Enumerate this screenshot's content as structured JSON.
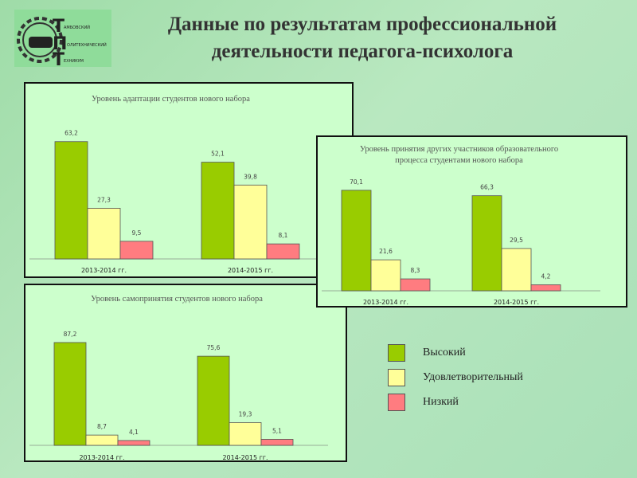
{
  "title": [
    "Данные по результатам профессиональной",
    "деятельности педагога-психолога"
  ],
  "logo": {
    "letters": [
      "Т",
      "П",
      "Т"
    ],
    "words": [
      "АМБОВСКИЙ",
      "ОЛИТЕХНИЧЕСКИЙ",
      "ЕХНИКУМ"
    ]
  },
  "colors": {
    "high": "#99cc00",
    "mid": "#ffff99",
    "low": "#ff7c80"
  },
  "legend": [
    {
      "label": "Высокий",
      "color": "#99cc00"
    },
    {
      "label": "Удовлетворительный",
      "color": "#ffff99"
    },
    {
      "label": "Низкий",
      "color": "#ff7c80"
    }
  ],
  "chart_data": [
    {
      "type": "bar",
      "title": [
        "Уровень адаптации студентов нового набора"
      ],
      "categories": [
        "2013-2014 гг.",
        "2014-2015 гг."
      ],
      "series": [
        {
          "name": "Высокий",
          "values": [
            63.2,
            52.1
          ]
        },
        {
          "name": "Удовлетворительный",
          "values": [
            27.3,
            39.8
          ]
        },
        {
          "name": "Низкий",
          "values": [
            9.5,
            8.1
          ]
        }
      ],
      "labels": [
        [
          "63,2",
          "27,3",
          "9,5"
        ],
        [
          "52,1",
          "39,8",
          "8,1"
        ]
      ]
    },
    {
      "type": "bar",
      "title": [
        "Уровень принятия других участников образовательного",
        "процесса студентами нового набора"
      ],
      "categories": [
        "2013-2014 гг.",
        "2014-2015 гг."
      ],
      "series": [
        {
          "name": "Высокий",
          "values": [
            70.1,
            66.3
          ]
        },
        {
          "name": "Удовлетворительный",
          "values": [
            21.6,
            29.5
          ]
        },
        {
          "name": "Низкий",
          "values": [
            8.3,
            4.2
          ]
        }
      ],
      "labels": [
        [
          "70,1",
          "21,6",
          "8,3"
        ],
        [
          "66,3",
          "29,5",
          "4,2"
        ]
      ]
    },
    {
      "type": "bar",
      "title": [
        "Уровень самопринятия студентов нового набора"
      ],
      "categories": [
        "2013-2014 гг.",
        "2014-2015 гг."
      ],
      "series": [
        {
          "name": "Высокий",
          "values": [
            87.2,
            75.6
          ]
        },
        {
          "name": "Удовлетворительный",
          "values": [
            8.7,
            19.3
          ]
        },
        {
          "name": "Низкий",
          "values": [
            4.1,
            5.1
          ]
        }
      ],
      "labels": [
        [
          "87,2",
          "8,7",
          "4,1"
        ],
        [
          "75,6",
          "19,3",
          "5,1"
        ]
      ]
    }
  ]
}
